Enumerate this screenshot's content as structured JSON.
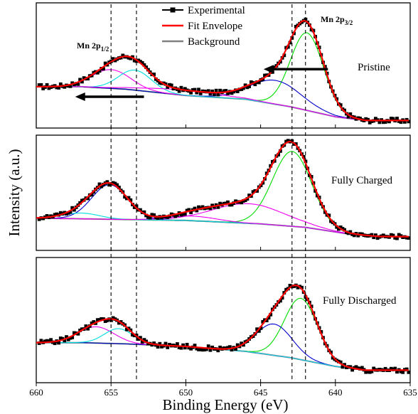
{
  "chart_data": {
    "type": "line",
    "xlabel": "Binding Energy (eV)",
    "ylabel": "Intensity (a.u.)",
    "xlim": [
      660,
      635
    ],
    "x_reversed": true,
    "x_ticks": [
      660,
      655,
      650,
      645,
      640,
      635
    ],
    "x_tick_labels": [
      "660",
      "655",
      "650",
      "645",
      "640",
      "635"
    ],
    "y_ticks_visible": false,
    "reference_lines_eV": [
      655.0,
      653.3,
      642.9,
      642.0
    ],
    "legend": {
      "position": "top-center (first panel)",
      "entries": [
        {
          "label": "Experimental",
          "color": "#000000",
          "marker": "square"
        },
        {
          "label": "Fit Envelope",
          "color": "#ff0000"
        },
        {
          "label": "Background",
          "color": "#808080"
        }
      ]
    },
    "annotations": {
      "mn2p12_base": "Mn 2p",
      "mn2p12_sub": "1/2",
      "mn2p32_base": "Mn 2p",
      "mn2p32_sub": "3/2"
    },
    "component_colors": {
      "green": "#00dd00",
      "blue": "#0000cc",
      "magenta": "#ee00ee",
      "cyan": "#00dddd"
    },
    "panels": [
      {
        "label": "Pristine",
        "ylim": [
          0,
          1
        ],
        "background": [
          [
            660,
            0.33
          ],
          [
            657,
            0.33
          ],
          [
            654,
            0.31
          ],
          [
            650,
            0.26
          ],
          [
            646,
            0.23
          ],
          [
            643,
            0.17
          ],
          [
            640,
            0.09
          ],
          [
            638,
            0.06
          ],
          [
            635,
            0.06
          ]
        ],
        "components": [
          {
            "color": "green",
            "center": 641.9,
            "amp": 0.62,
            "sigma": 1.1
          },
          {
            "color": "blue",
            "center": 644.0,
            "amp": 0.19,
            "sigma": 1.7
          },
          {
            "color": "magenta",
            "center": 655.0,
            "amp": 0.15,
            "sigma": 1.3
          },
          {
            "color": "cyan",
            "center": 653.4,
            "amp": 0.16,
            "sigma": 1.1
          },
          {
            "color": "magenta",
            "center": 650.3,
            "amp": 0.04,
            "sigma": 2.5
          }
        ],
        "arrows": [
          {
            "from": 640.5,
            "to": 644.8,
            "y": 0.47
          },
          {
            "from": 652.8,
            "to": 657.4,
            "y": 0.25
          }
        ]
      },
      {
        "label": "Fully Charged",
        "ylim": [
          0,
          1
        ],
        "background": [
          [
            660,
            0.28
          ],
          [
            655,
            0.27
          ],
          [
            650,
            0.26
          ],
          [
            645,
            0.23
          ],
          [
            642,
            0.2
          ],
          [
            639,
            0.14
          ],
          [
            637,
            0.12
          ],
          [
            635,
            0.12
          ]
        ],
        "components": [
          {
            "color": "green",
            "center": 642.9,
            "amp": 0.65,
            "sigma": 1.3
          },
          {
            "color": "magenta",
            "center": 645.8,
            "amp": 0.17,
            "sigma": 2.4
          },
          {
            "color": "blue",
            "center": 655.1,
            "amp": 0.3,
            "sigma": 1.2
          },
          {
            "color": "cyan",
            "center": 657.0,
            "amp": 0.05,
            "sigma": 1.2
          },
          {
            "color": "magenta",
            "center": 649.5,
            "amp": 0.04,
            "sigma": 1.6
          }
        ]
      },
      {
        "label": "Fully Discharged",
        "ylim": [
          0,
          1
        ],
        "background": [
          [
            660,
            0.32
          ],
          [
            657,
            0.32
          ],
          [
            654,
            0.31
          ],
          [
            650,
            0.29
          ],
          [
            646,
            0.25
          ],
          [
            643,
            0.2
          ],
          [
            640,
            0.13
          ],
          [
            638,
            0.1
          ],
          [
            635,
            0.1
          ]
        ],
        "components": [
          {
            "color": "green",
            "center": 642.3,
            "amp": 0.49,
            "sigma": 1.1
          },
          {
            "color": "blue",
            "center": 644.1,
            "amp": 0.25,
            "sigma": 1.2
          },
          {
            "color": "magenta",
            "center": 656.0,
            "amp": 0.13,
            "sigma": 1.2
          },
          {
            "color": "cyan",
            "center": 654.5,
            "amp": 0.12,
            "sigma": 0.95
          }
        ]
      }
    ]
  }
}
